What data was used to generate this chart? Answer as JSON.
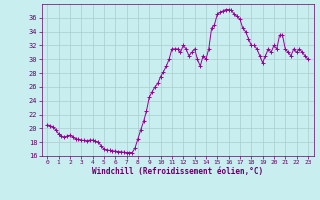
{
  "title": "",
  "xlabel": "Windchill (Refroidissement éolien,°C)",
  "ylabel": "",
  "bg_color": "#c8eef0",
  "line_color": "#990099",
  "marker_color": "#990099",
  "grid_color": "#aacccc",
  "xlim": [
    -0.5,
    23.5
  ],
  "ylim": [
    16,
    38
  ],
  "yticks": [
    16,
    18,
    20,
    22,
    24,
    26,
    28,
    30,
    32,
    34,
    36
  ],
  "xticks": [
    0,
    1,
    2,
    3,
    4,
    5,
    6,
    7,
    8,
    9,
    10,
    11,
    12,
    13,
    14,
    15,
    16,
    17,
    18,
    19,
    20,
    21,
    22,
    23
  ],
  "data_x": [
    0,
    0.25,
    0.5,
    0.75,
    1,
    1.25,
    1.5,
    1.75,
    2,
    2.25,
    2.5,
    2.75,
    3,
    3.25,
    3.5,
    3.75,
    4,
    4.25,
    4.5,
    4.75,
    5,
    5.25,
    5.5,
    5.75,
    6,
    6.25,
    6.5,
    6.75,
    7,
    7.25,
    7.5,
    7.75,
    8,
    8.25,
    8.5,
    8.75,
    9,
    9.25,
    9.5,
    9.75,
    10,
    10.25,
    10.5,
    10.75,
    11,
    11.25,
    11.5,
    11.75,
    12,
    12.25,
    12.5,
    12.75,
    13,
    13.25,
    13.5,
    13.75,
    14,
    14.25,
    14.5,
    14.75,
    15,
    15.25,
    15.5,
    15.75,
    16,
    16.25,
    16.5,
    16.75,
    17,
    17.25,
    17.5,
    17.75,
    18,
    18.25,
    18.5,
    18.75,
    19,
    19.25,
    19.5,
    19.75,
    20,
    20.25,
    20.5,
    20.75,
    21,
    21.25,
    21.5,
    21.75,
    22,
    22.25,
    22.5,
    22.75,
    23
  ],
  "data_y": [
    20.5,
    20.4,
    20.2,
    19.8,
    19.2,
    18.9,
    18.7,
    18.9,
    19.0,
    18.8,
    18.5,
    18.4,
    18.3,
    18.25,
    18.2,
    18.3,
    18.3,
    18.15,
    18.0,
    17.5,
    17.0,
    16.9,
    16.8,
    16.75,
    16.7,
    16.65,
    16.6,
    16.55,
    16.5,
    16.5,
    16.5,
    17.2,
    18.5,
    19.8,
    21.0,
    22.5,
    24.5,
    25.3,
    26.0,
    26.5,
    27.5,
    28.2,
    29.0,
    30.0,
    31.5,
    31.5,
    31.5,
    31.0,
    32.0,
    31.5,
    30.5,
    31.0,
    31.5,
    30.0,
    29.0,
    30.5,
    30.0,
    31.5,
    34.5,
    35.0,
    36.5,
    36.8,
    37.0,
    37.2,
    37.2,
    37.1,
    36.5,
    36.2,
    35.8,
    34.5,
    34.0,
    33.0,
    32.0,
    32.0,
    31.5,
    30.5,
    29.5,
    30.5,
    31.5,
    31.0,
    32.0,
    31.5,
    33.5,
    33.5,
    31.5,
    31.0,
    30.5,
    31.5,
    31.0,
    31.5,
    31.0,
    30.5,
    30.0
  ]
}
